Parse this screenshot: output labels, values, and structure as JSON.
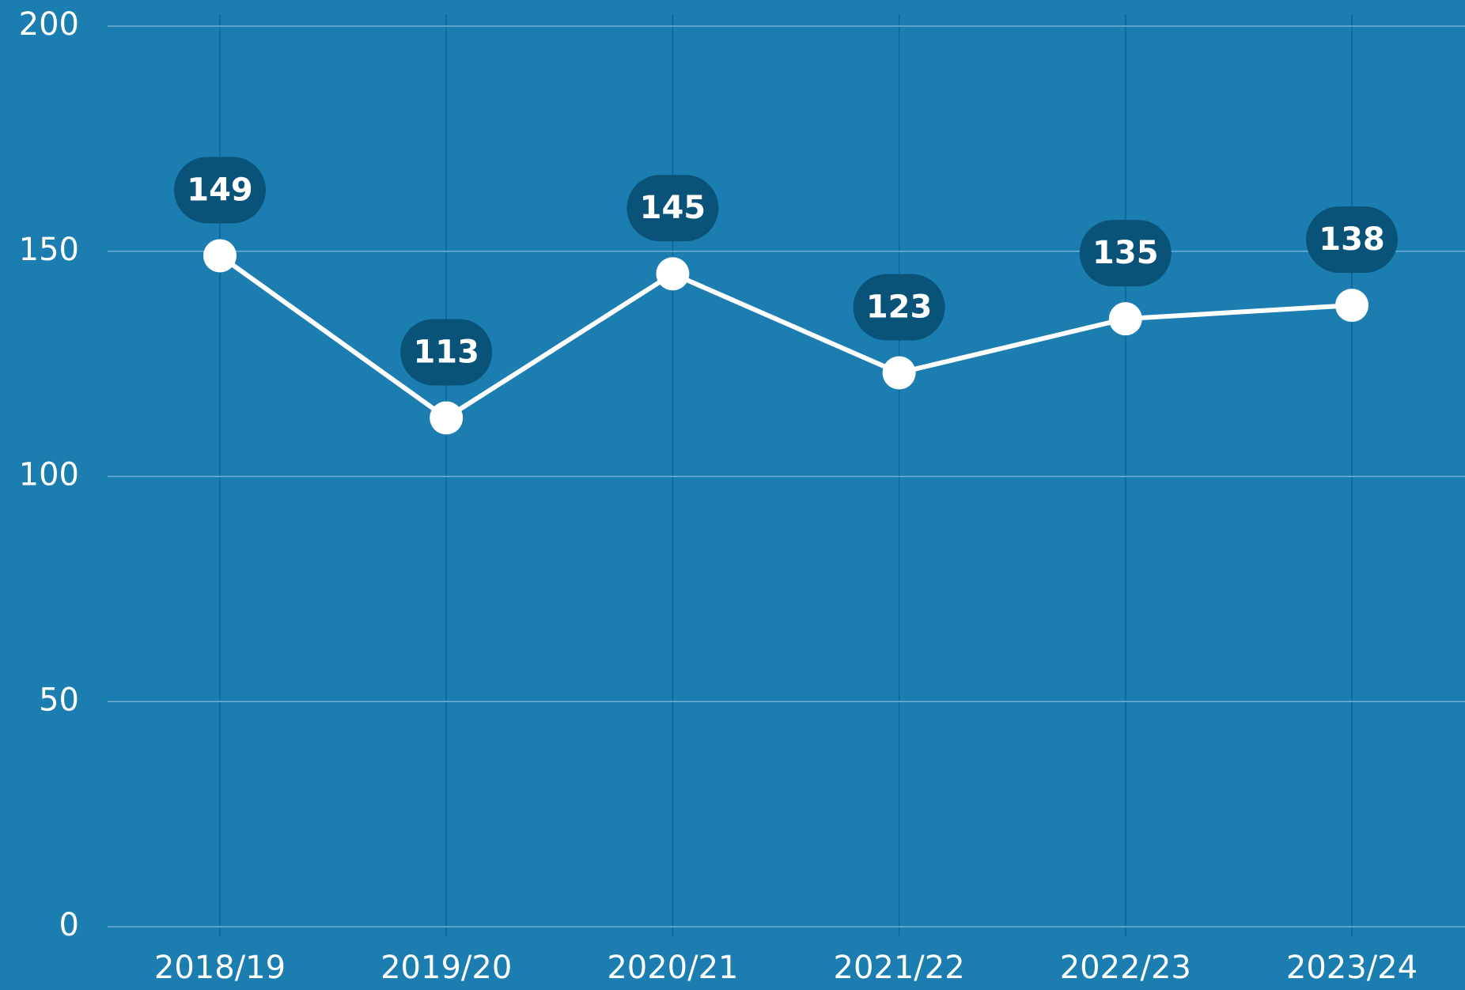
{
  "chart_data": {
    "type": "line",
    "categories": [
      "2018/19",
      "2019/20",
      "2020/21",
      "2021/22",
      "2022/23",
      "2023/24"
    ],
    "values": [
      149,
      113,
      145,
      123,
      135,
      138
    ],
    "color": "#ffffff",
    "background": "#1c7db0",
    "label_color": "#0a5378",
    "ylim": [
      0,
      200
    ],
    "yticks": [
      0,
      50,
      100,
      150,
      200
    ],
    "grid": true
  }
}
